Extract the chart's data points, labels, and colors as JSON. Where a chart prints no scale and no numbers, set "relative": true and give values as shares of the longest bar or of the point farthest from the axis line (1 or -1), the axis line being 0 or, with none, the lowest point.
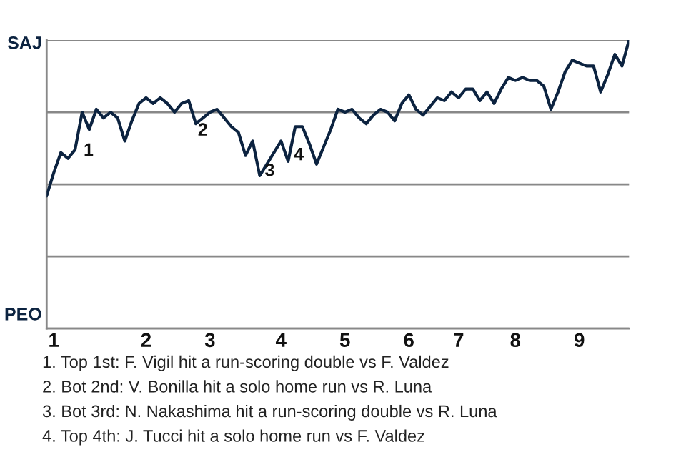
{
  "chart_data": {
    "type": "line",
    "relative": true,
    "categories": [
      null,
      "1",
      null,
      null,
      null,
      null,
      null,
      null,
      null,
      null,
      null,
      null,
      null,
      null,
      "2",
      null,
      null,
      null,
      null,
      null,
      null,
      null,
      null,
      "3",
      null,
      null,
      null,
      null,
      null,
      null,
      null,
      null,
      null,
      "4",
      null,
      null,
      null,
      null,
      null,
      null,
      null,
      null,
      "5",
      null,
      null,
      null,
      null,
      null,
      null,
      null,
      null,
      "6",
      null,
      null,
      null,
      null,
      null,
      null,
      "7",
      null,
      null,
      null,
      null,
      null,
      null,
      null,
      "8",
      null,
      null,
      null,
      null,
      null,
      null,
      null,
      null,
      "9",
      null,
      null,
      null,
      null,
      null,
      null,
      null
    ],
    "series": [
      {
        "color": "#0c2340",
        "values": [
          0.46,
          0.54,
          0.61,
          0.59,
          0.62,
          0.75,
          0.69,
          0.76,
          0.73,
          0.75,
          0.73,
          0.65,
          0.72,
          0.78,
          0.8,
          0.78,
          0.8,
          0.78,
          0.75,
          0.78,
          0.79,
          0.71,
          0.73,
          0.75,
          0.76,
          0.73,
          0.7,
          0.68,
          0.6,
          0.65,
          0.53,
          0.57,
          0.61,
          0.65,
          0.58,
          0.7,
          0.7,
          0.64,
          0.57,
          0.63,
          0.69,
          0.76,
          0.75,
          0.76,
          0.73,
          0.71,
          0.74,
          0.76,
          0.75,
          0.72,
          0.78,
          0.81,
          0.76,
          0.74,
          0.77,
          0.8,
          0.79,
          0.82,
          0.8,
          0.83,
          0.83,
          0.79,
          0.82,
          0.78,
          0.83,
          0.87,
          0.86,
          0.87,
          0.86,
          0.86,
          0.84,
          0.76,
          0.82,
          0.89,
          0.93,
          0.92,
          0.91,
          0.91,
          0.82,
          0.88,
          0.95,
          0.91,
          1.0
        ]
      }
    ],
    "grid": "y",
    "annotations": [
      "SAJ",
      "PEO",
      "1",
      "2",
      "3",
      "4",
      "1. Top 1st: F. Vigil hit a run-scoring double vs F. Valdez",
      "2. Bot 2nd: V. Bonilla hit a solo home run vs R. Luna",
      "3. Bot 3rd: N. Nakashima hit a run-scoring double vs R. Luna",
      "4. Top 4th: J. Tucci hit a solo home run vs F. Valdez"
    ],
    "marker": "none",
    "line_style": "solid",
    "legend": false
  }
}
